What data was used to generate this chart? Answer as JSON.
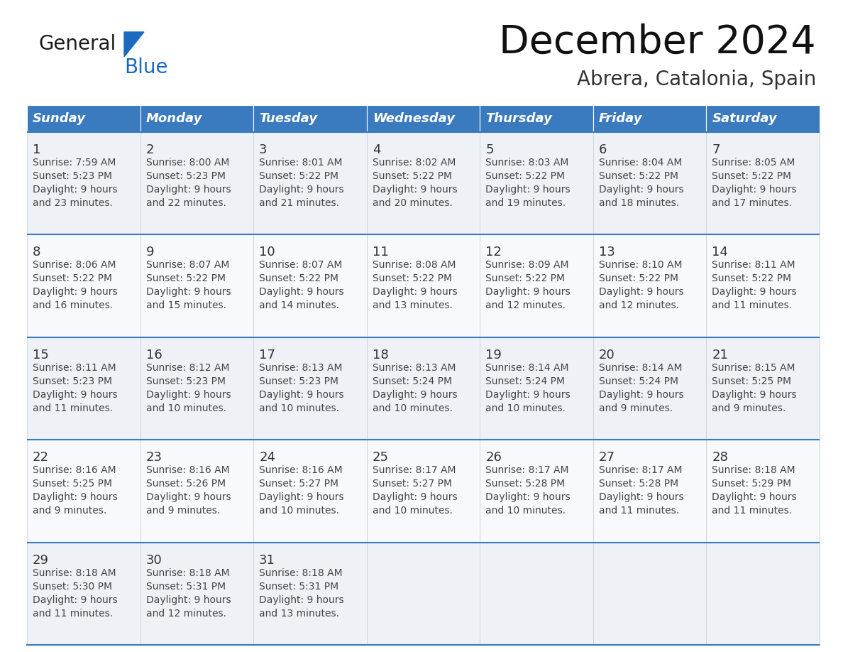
{
  "title": "December 2024",
  "subtitle": "Abrera, Catalonia, Spain",
  "days_of_week": [
    "Sunday",
    "Monday",
    "Tuesday",
    "Wednesday",
    "Thursday",
    "Friday",
    "Saturday"
  ],
  "header_bg": "#3a7abf",
  "header_text_color": "#ffffff",
  "cell_bg_odd": "#eef2f7",
  "cell_bg_even": "#f7f9fc",
  "border_color": "#3a7abf",
  "day_number_color": "#333333",
  "text_color": "#444444",
  "weeks": [
    [
      {
        "day": 1,
        "sunrise": "7:59 AM",
        "sunset": "5:23 PM",
        "daylight_hrs": "9 hours",
        "daylight_min": "and 23 minutes."
      },
      {
        "day": 2,
        "sunrise": "8:00 AM",
        "sunset": "5:23 PM",
        "daylight_hrs": "9 hours",
        "daylight_min": "and 22 minutes."
      },
      {
        "day": 3,
        "sunrise": "8:01 AM",
        "sunset": "5:22 PM",
        "daylight_hrs": "9 hours",
        "daylight_min": "and 21 minutes."
      },
      {
        "day": 4,
        "sunrise": "8:02 AM",
        "sunset": "5:22 PM",
        "daylight_hrs": "9 hours",
        "daylight_min": "and 20 minutes."
      },
      {
        "day": 5,
        "sunrise": "8:03 AM",
        "sunset": "5:22 PM",
        "daylight_hrs": "9 hours",
        "daylight_min": "and 19 minutes."
      },
      {
        "day": 6,
        "sunrise": "8:04 AM",
        "sunset": "5:22 PM",
        "daylight_hrs": "9 hours",
        "daylight_min": "and 18 minutes."
      },
      {
        "day": 7,
        "sunrise": "8:05 AM",
        "sunset": "5:22 PM",
        "daylight_hrs": "9 hours",
        "daylight_min": "and 17 minutes."
      }
    ],
    [
      {
        "day": 8,
        "sunrise": "8:06 AM",
        "sunset": "5:22 PM",
        "daylight_hrs": "9 hours",
        "daylight_min": "and 16 minutes."
      },
      {
        "day": 9,
        "sunrise": "8:07 AM",
        "sunset": "5:22 PM",
        "daylight_hrs": "9 hours",
        "daylight_min": "and 15 minutes."
      },
      {
        "day": 10,
        "sunrise": "8:07 AM",
        "sunset": "5:22 PM",
        "daylight_hrs": "9 hours",
        "daylight_min": "and 14 minutes."
      },
      {
        "day": 11,
        "sunrise": "8:08 AM",
        "sunset": "5:22 PM",
        "daylight_hrs": "9 hours",
        "daylight_min": "and 13 minutes."
      },
      {
        "day": 12,
        "sunrise": "8:09 AM",
        "sunset": "5:22 PM",
        "daylight_hrs": "9 hours",
        "daylight_min": "and 12 minutes."
      },
      {
        "day": 13,
        "sunrise": "8:10 AM",
        "sunset": "5:22 PM",
        "daylight_hrs": "9 hours",
        "daylight_min": "and 12 minutes."
      },
      {
        "day": 14,
        "sunrise": "8:11 AM",
        "sunset": "5:22 PM",
        "daylight_hrs": "9 hours",
        "daylight_min": "and 11 minutes."
      }
    ],
    [
      {
        "day": 15,
        "sunrise": "8:11 AM",
        "sunset": "5:23 PM",
        "daylight_hrs": "9 hours",
        "daylight_min": "and 11 minutes."
      },
      {
        "day": 16,
        "sunrise": "8:12 AM",
        "sunset": "5:23 PM",
        "daylight_hrs": "9 hours",
        "daylight_min": "and 10 minutes."
      },
      {
        "day": 17,
        "sunrise": "8:13 AM",
        "sunset": "5:23 PM",
        "daylight_hrs": "9 hours",
        "daylight_min": "and 10 minutes."
      },
      {
        "day": 18,
        "sunrise": "8:13 AM",
        "sunset": "5:24 PM",
        "daylight_hrs": "9 hours",
        "daylight_min": "and 10 minutes."
      },
      {
        "day": 19,
        "sunrise": "8:14 AM",
        "sunset": "5:24 PM",
        "daylight_hrs": "9 hours",
        "daylight_min": "and 10 minutes."
      },
      {
        "day": 20,
        "sunrise": "8:14 AM",
        "sunset": "5:24 PM",
        "daylight_hrs": "9 hours",
        "daylight_min": "and 9 minutes."
      },
      {
        "day": 21,
        "sunrise": "8:15 AM",
        "sunset": "5:25 PM",
        "daylight_hrs": "9 hours",
        "daylight_min": "and 9 minutes."
      }
    ],
    [
      {
        "day": 22,
        "sunrise": "8:16 AM",
        "sunset": "5:25 PM",
        "daylight_hrs": "9 hours",
        "daylight_min": "and 9 minutes."
      },
      {
        "day": 23,
        "sunrise": "8:16 AM",
        "sunset": "5:26 PM",
        "daylight_hrs": "9 hours",
        "daylight_min": "and 9 minutes."
      },
      {
        "day": 24,
        "sunrise": "8:16 AM",
        "sunset": "5:27 PM",
        "daylight_hrs": "9 hours",
        "daylight_min": "and 10 minutes."
      },
      {
        "day": 25,
        "sunrise": "8:17 AM",
        "sunset": "5:27 PM",
        "daylight_hrs": "9 hours",
        "daylight_min": "and 10 minutes."
      },
      {
        "day": 26,
        "sunrise": "8:17 AM",
        "sunset": "5:28 PM",
        "daylight_hrs": "9 hours",
        "daylight_min": "and 10 minutes."
      },
      {
        "day": 27,
        "sunrise": "8:17 AM",
        "sunset": "5:28 PM",
        "daylight_hrs": "9 hours",
        "daylight_min": "and 11 minutes."
      },
      {
        "day": 28,
        "sunrise": "8:18 AM",
        "sunset": "5:29 PM",
        "daylight_hrs": "9 hours",
        "daylight_min": "and 11 minutes."
      }
    ],
    [
      {
        "day": 29,
        "sunrise": "8:18 AM",
        "sunset": "5:30 PM",
        "daylight_hrs": "9 hours",
        "daylight_min": "and 11 minutes."
      },
      {
        "day": 30,
        "sunrise": "8:18 AM",
        "sunset": "5:31 PM",
        "daylight_hrs": "9 hours",
        "daylight_min": "and 12 minutes."
      },
      {
        "day": 31,
        "sunrise": "8:18 AM",
        "sunset": "5:31 PM",
        "daylight_hrs": "9 hours",
        "daylight_min": "and 13 minutes."
      },
      null,
      null,
      null,
      null
    ]
  ],
  "logo_general_color": "#1a1a1a",
  "logo_blue_color": "#1a6bbf",
  "logo_triangle_color": "#1a6bbf"
}
